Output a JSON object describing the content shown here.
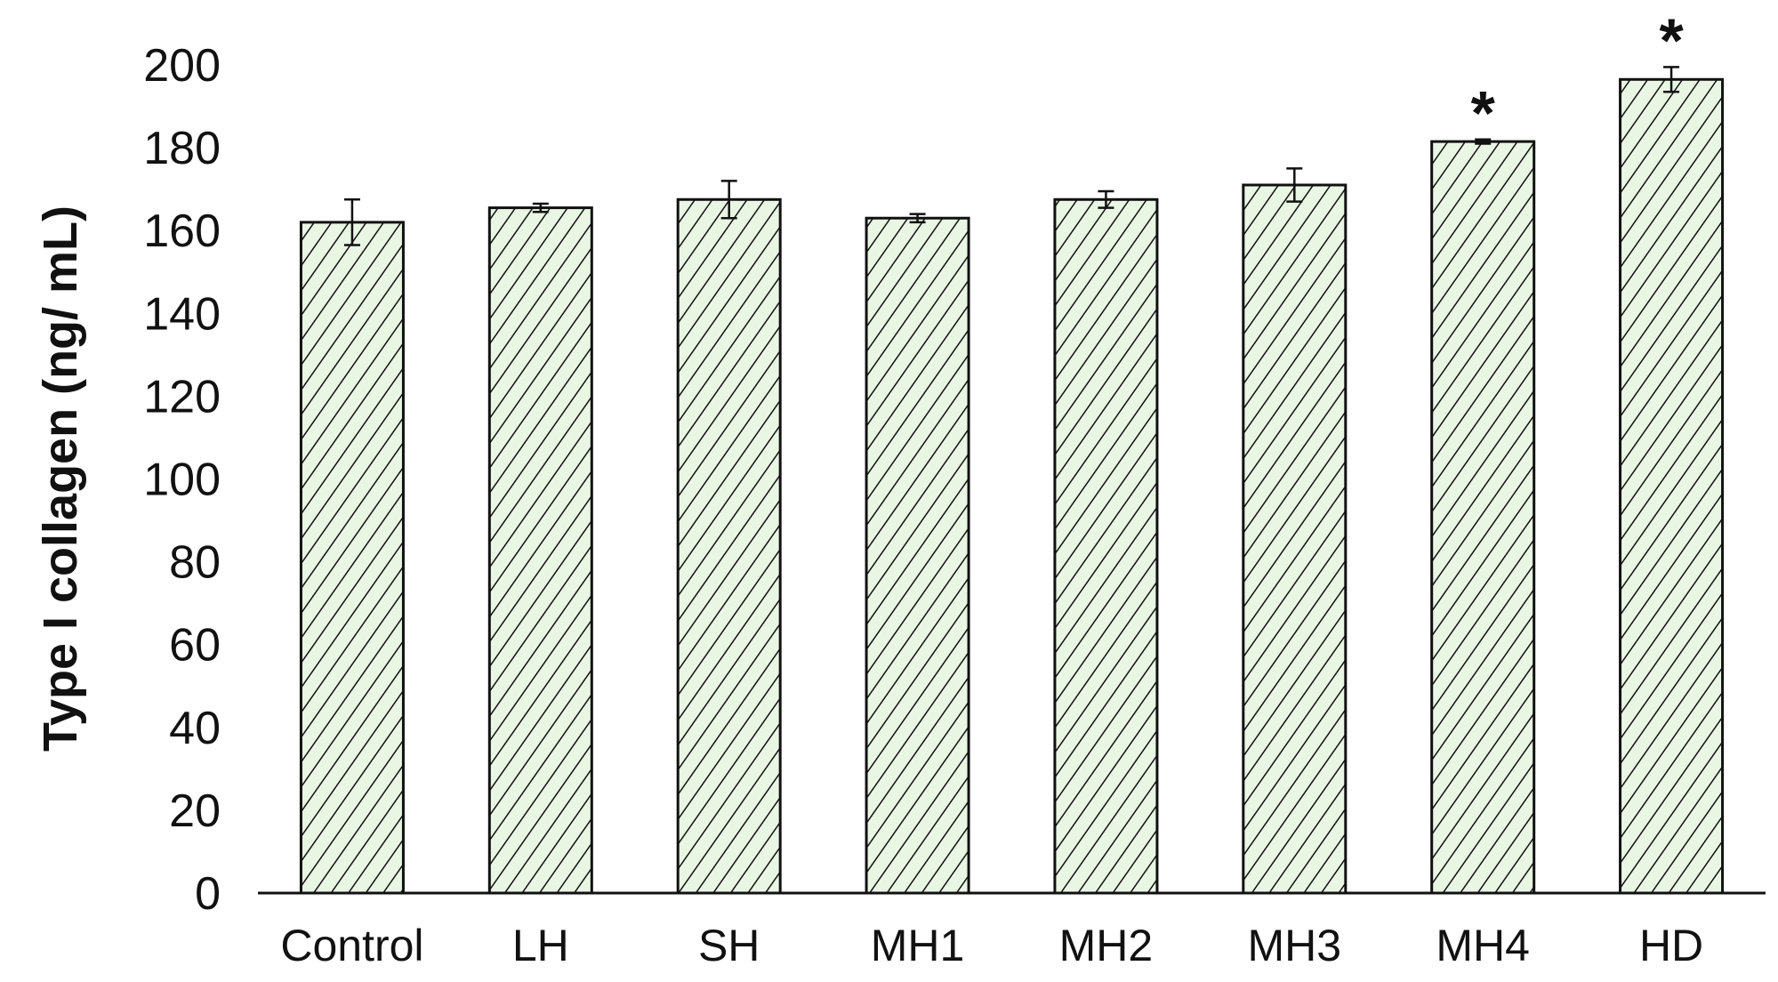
{
  "chart_data": {
    "type": "bar",
    "title": "",
    "xlabel": "",
    "ylabel": "Type I collagen (ng/ mL)",
    "ylim": [
      0,
      200
    ],
    "yticks": [
      0,
      20,
      40,
      60,
      80,
      100,
      120,
      140,
      160,
      180,
      200
    ],
    "grid": false,
    "legend": "none",
    "categories": [
      "Control",
      "LH",
      "SH",
      "MH1",
      "MH2",
      "MH3",
      "MH4",
      "HD"
    ],
    "series": [
      {
        "values": [
          162,
          165.5,
          167.5,
          163,
          167.5,
          171,
          181.5,
          196.5
        ],
        "errors": [
          5.5,
          1,
          4.5,
          1,
          2,
          4,
          0.5,
          3
        ],
        "annotations": [
          "",
          "",
          "",
          "",
          "",
          "",
          "*",
          "*"
        ]
      }
    ],
    "colors": {
      "bar_fill": "#e9f6e4",
      "hatch": "#111111",
      "outline": "#111111",
      "axis": "#111111"
    }
  }
}
